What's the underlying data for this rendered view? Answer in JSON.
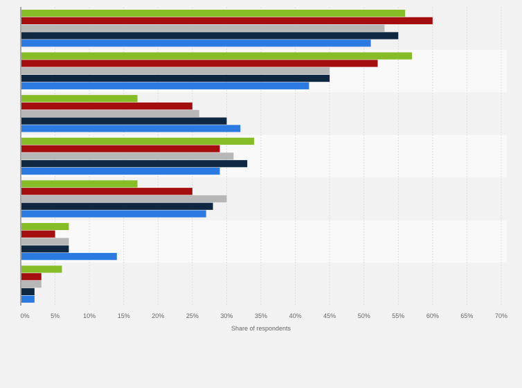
{
  "chart_data": {
    "type": "bar",
    "orientation": "horizontal",
    "title": "",
    "xlabel": "Share of respondents",
    "ylabel": "",
    "xlim": [
      0,
      70
    ],
    "x_ticks": [
      "0%",
      "5%",
      "10%",
      "15%",
      "20%",
      "25%",
      "30%",
      "35%",
      "40%",
      "45%",
      "50%",
      "55%",
      "60%",
      "65%",
      "70%"
    ],
    "grid": true,
    "group_count": 7,
    "series": [
      {
        "color": "#86bc25",
        "values": [
          56,
          57,
          17,
          34,
          17,
          7,
          6
        ]
      },
      {
        "color": "#a50e0e",
        "values": [
          60,
          52,
          25,
          29,
          25,
          5,
          3
        ]
      },
      {
        "color": "#b7b7b7",
        "values": [
          53,
          45,
          26,
          31,
          30,
          7,
          3
        ]
      },
      {
        "color": "#0f2740",
        "values": [
          55,
          45,
          30,
          33,
          28,
          7,
          2
        ]
      },
      {
        "color": "#2a7ae2",
        "values": [
          51,
          42,
          32,
          29,
          27,
          14,
          2
        ]
      }
    ]
  }
}
